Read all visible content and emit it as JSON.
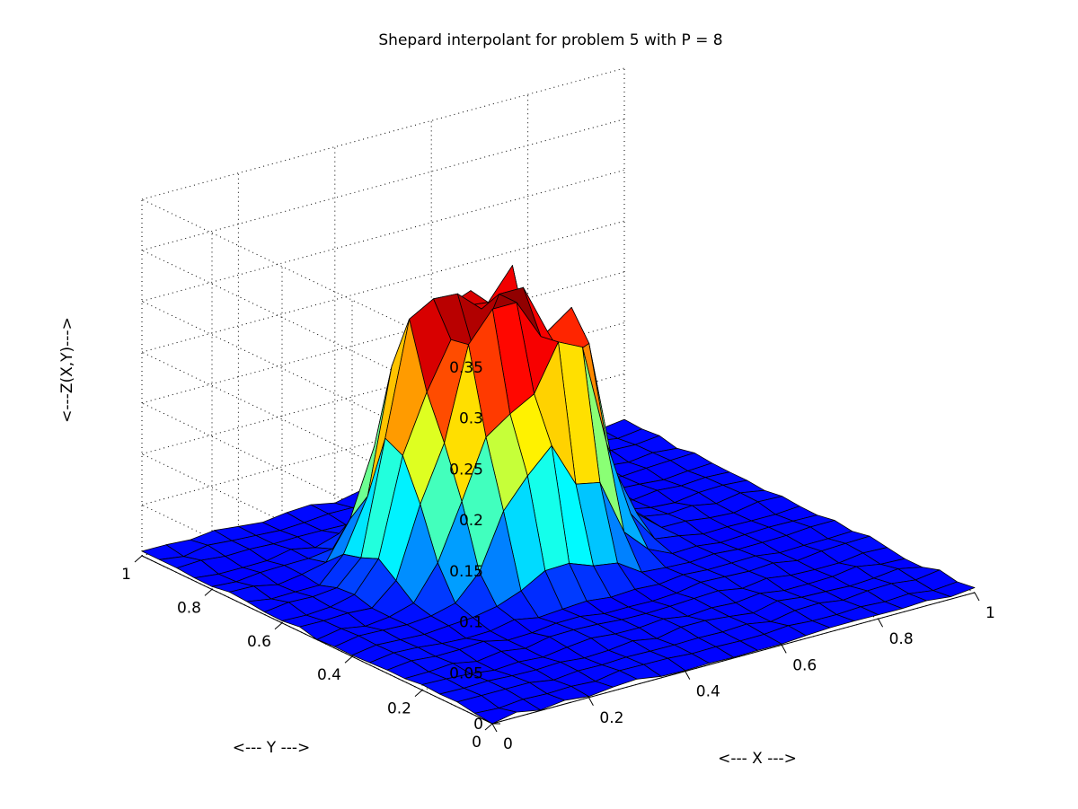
{
  "chart_data": {
    "type": "surface",
    "title": "Shepard interpolant for problem 5 with P = 8",
    "xlabel": "<--- X --->",
    "ylabel": "<--- Y --->",
    "zlabel": "<---Z(X,Y)--->",
    "xlim": [
      0,
      1
    ],
    "ylim": [
      0,
      1
    ],
    "zlim": [
      0,
      0.35
    ],
    "x_ticks": [
      "0",
      "0.2",
      "0.4",
      "0.6",
      "0.8",
      "1"
    ],
    "y_ticks": [
      "0",
      "0.2",
      "0.4",
      "0.6",
      "0.8",
      "1"
    ],
    "z_ticks": [
      "0",
      "0.05",
      "0.1",
      "0.15",
      "0.2",
      "0.25",
      "0.3",
      "0.35"
    ],
    "grid": true,
    "colormap": "jet",
    "surface": {
      "grid_points": 21,
      "x_range": [
        0,
        1
      ],
      "y_range": [
        0,
        1
      ],
      "peak_value": 0.26,
      "peak_location": {
        "x": 0.45,
        "y": 0.62
      },
      "description_of_shape": "single broad irregular plateau"
    }
  }
}
